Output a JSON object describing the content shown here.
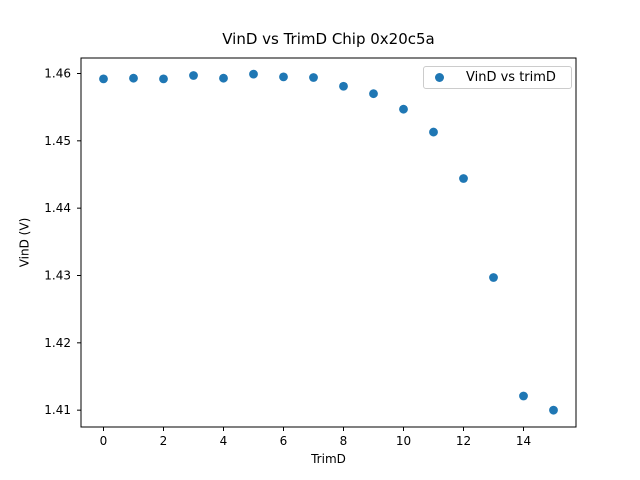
{
  "chart_data": {
    "type": "scatter",
    "title": "VinD vs TrimD Chip 0x20c5a",
    "xlabel": "TrimD",
    "ylabel": "VinD (V)",
    "series": [
      {
        "name": "VinD vs trimD",
        "marker": "circle",
        "color": "#1f77b4",
        "x": [
          0,
          1,
          2,
          3,
          4,
          5,
          6,
          7,
          8,
          9,
          10,
          11,
          12,
          13,
          14,
          15
        ],
        "y": [
          1.4592,
          1.4593,
          1.4592,
          1.4597,
          1.4593,
          1.4599,
          1.4595,
          1.4594,
          1.4581,
          1.457,
          1.4547,
          1.4513,
          1.4444,
          1.4297,
          1.4121,
          1.41
        ]
      }
    ],
    "xlim": [
      -0.75,
      15.75
    ],
    "ylim": [
      1.4075,
      1.4623
    ],
    "xticks": [
      0,
      2,
      4,
      6,
      8,
      10,
      12,
      14
    ],
    "yticks": [
      1.41,
      1.42,
      1.43,
      1.44,
      1.45,
      1.46
    ],
    "ytick_decimals": 2,
    "grid": false,
    "legend": {
      "position": "upper right",
      "entries": [
        "VinD vs trimD"
      ]
    }
  },
  "colors": {
    "marker": "#1f77b4",
    "spine": "#000000",
    "tick_text": "#000000",
    "legend_border": "#cccccc",
    "background": "#ffffff"
  }
}
